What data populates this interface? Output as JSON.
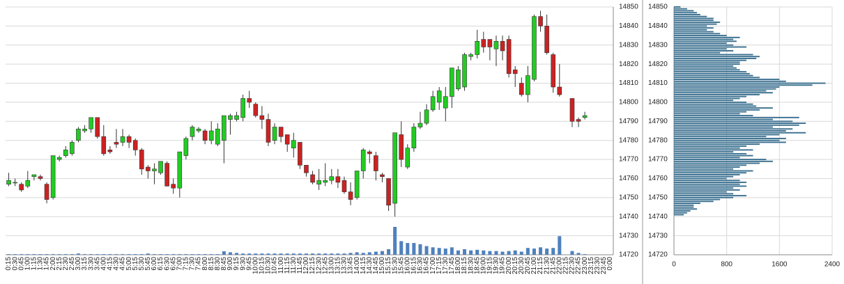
{
  "chart_data": [
    {
      "type": "candlestick",
      "categories": [
        "0:15",
        "0:30",
        "0:45",
        "1:00",
        "1:15",
        "1:30",
        "1:45",
        "2:00",
        "2:15",
        "2:30",
        "2:45",
        "3:00",
        "3:15",
        "3:30",
        "3:45",
        "4:00",
        "4:15",
        "4:30",
        "4:45",
        "5:00",
        "5:15",
        "5:30",
        "5:45",
        "6:00",
        "6:15",
        "6:30",
        "6:45",
        "7:00",
        "7:15",
        "7:30",
        "7:45",
        "8:00",
        "8:15",
        "8:30",
        "8:45",
        "9:00",
        "9:15",
        "9:30",
        "9:45",
        "10:00",
        "10:15",
        "10:30",
        "10:45",
        "11:00",
        "11:15",
        "11:30",
        "11:45",
        "12:00",
        "12:15",
        "12:30",
        "12:45",
        "13:00",
        "13:15",
        "13:30",
        "13:45",
        "14:00",
        "14:15",
        "14:30",
        "14:45",
        "15:00",
        "15:15",
        "15:30",
        "15:45",
        "16:00",
        "16:15",
        "16:30",
        "16:45",
        "17:00",
        "17:15",
        "17:30",
        "17:45",
        "18:00",
        "18:15",
        "18:30",
        "18:45",
        "19:00",
        "19:15",
        "19:30",
        "19:45",
        "20:00",
        "20:15",
        "20:30",
        "20:45",
        "21:00",
        "21:15",
        "21:30",
        "21:45",
        "22:00",
        "22:15",
        "22:30",
        "22:45",
        "23:00",
        "23:15",
        "23:30",
        "23:45",
        "0:00"
      ],
      "open": [
        14757,
        14758,
        14757,
        14756,
        14761,
        14761,
        14757,
        14750,
        14770,
        14772,
        14773,
        14780,
        14785,
        14786,
        14792,
        14782,
        14775,
        14779,
        14779,
        14782,
        14780,
        14775,
        14766,
        14764,
        14763,
        14768,
        14757,
        14755,
        14772,
        14782,
        14785,
        14785,
        14780,
        14778,
        14780,
        14791,
        14791,
        14792,
        14802,
        14799,
        14793,
        14791,
        14780,
        14787,
        14783,
        14776,
        14779,
        14767,
        14762,
        14757,
        14758,
        14759,
        14761,
        14759,
        14753,
        14750,
        14764,
        14774,
        14772,
        14762,
        14760,
        14747,
        14783,
        14766,
        14776,
        14787,
        14789,
        14796,
        14800,
        14797,
        14803,
        14807,
        14808,
        14824,
        14825,
        14833,
        14833,
        14828,
        14832,
        14833,
        14817,
        14810,
        14804,
        14812,
        14845,
        14840,
        14825,
        14808,
        null,
        14802,
        14791,
        14792,
        null,
        null,
        null,
        null
      ],
      "high": [
        14763,
        14760,
        14758,
        14764,
        14762,
        14762,
        14758,
        14772,
        14772,
        14777,
        14780,
        14787,
        14788,
        14792,
        14792,
        14788,
        14777,
        14786,
        14786,
        14783,
        14781,
        14776,
        14767,
        14768,
        14769,
        14769,
        14760,
        14774,
        14782,
        14788,
        14787,
        14786,
        14790,
        14789,
        14793,
        14794,
        14795,
        14804,
        14806,
        14800,
        14798,
        14794,
        14789,
        14787,
        14783,
        14784,
        14779,
        14767,
        14764,
        14765,
        14768,
        14765,
        14765,
        14761,
        14758,
        14764,
        14776,
        14775,
        14774,
        14763,
        14760,
        14784,
        14790,
        14778,
        14789,
        14795,
        14799,
        14806,
        14808,
        14808,
        14818,
        14819,
        14826,
        14826,
        14838,
        14837,
        14833,
        14835,
        14835,
        14835,
        14819,
        14813,
        14819,
        14846,
        14848,
        14846,
        14826,
        14820,
        null,
        14802,
        14792,
        14795,
        null,
        null,
        null,
        null
      ],
      "low": [
        14756,
        14756,
        14753,
        14755,
        14759,
        14759,
        14747,
        14749,
        14769,
        14771,
        14772,
        14779,
        14784,
        14784,
        14781,
        14772,
        14773,
        14776,
        14777,
        14776,
        14772,
        14762,
        14760,
        14757,
        14762,
        14756,
        14752,
        14750,
        14770,
        14780,
        14784,
        14778,
        14778,
        14777,
        14768,
        14783,
        14790,
        14790,
        14797,
        14792,
        14786,
        14777,
        14778,
        14779,
        14774,
        14771,
        14765,
        14761,
        14757,
        14754,
        14756,
        14757,
        14755,
        14752,
        14746,
        14749,
        14760,
        14768,
        14759,
        14758,
        14743,
        14740,
        14766,
        14765,
        14774,
        14786,
        14788,
        14795,
        14796,
        14790,
        14797,
        14806,
        14806,
        14822,
        14823,
        14826,
        14822,
        14819,
        14822,
        14813,
        14808,
        14803,
        14800,
        14811,
        14837,
        14825,
        14805,
        14803,
        null,
        14787,
        14787,
        14791,
        null,
        null,
        null,
        null
      ],
      "close": [
        14759,
        14758,
        14754,
        14759,
        14762,
        14760,
        14749,
        14772,
        14771,
        14775,
        14779,
        14786,
        14786,
        14792,
        14782,
        14773,
        14774,
        14778,
        14782,
        14779,
        14775,
        14765,
        14764,
        14765,
        14769,
        14756,
        14755,
        14774,
        14781,
        14787,
        14786,
        14780,
        14785,
        14786,
        14793,
        14793,
        14793,
        14802,
        14800,
        14793,
        14791,
        14779,
        14787,
        14782,
        14778,
        14780,
        14767,
        14763,
        14758,
        14759,
        14759,
        14761,
        14758,
        14753,
        14749,
        14764,
        14775,
        14773,
        14764,
        14761,
        14746,
        14784,
        14770,
        14776,
        14787,
        14789,
        14796,
        14803,
        14806,
        14803,
        14818,
        14817,
        14825,
        14825,
        14832,
        14829,
        14829,
        14832,
        14827,
        14815,
        14815,
        14804,
        14814,
        14845,
        14840,
        14826,
        14808,
        14804,
        null,
        14790,
        14790,
        14793,
        null,
        null,
        null,
        null
      ],
      "volume": [
        10,
        10,
        10,
        10,
        10,
        10,
        10,
        10,
        10,
        10,
        10,
        20,
        10,
        10,
        10,
        10,
        10,
        10,
        10,
        10,
        10,
        10,
        20,
        10,
        10,
        10,
        10,
        10,
        10,
        10,
        10,
        10,
        10,
        10,
        56,
        40,
        30,
        20,
        20,
        20,
        20,
        20,
        20,
        20,
        20,
        20,
        20,
        20,
        20,
        20,
        20,
        20,
        20,
        20,
        30,
        40,
        30,
        40,
        50,
        60,
        90,
        450,
        220,
        190,
        190,
        170,
        140,
        120,
        110,
        100,
        120,
        70,
        90,
        70,
        80,
        70,
        60,
        60,
        50,
        60,
        70,
        50,
        110,
        100,
        120,
        100,
        110,
        300,
        0,
        60,
        30,
        10,
        0,
        0,
        0,
        0
      ],
      "up_color": "#22cc22",
      "down_color": "#cc2222",
      "volume_color": "#4f81bd",
      "ylim": [
        14720,
        14850
      ],
      "yticks": [
        14720,
        14730,
        14740,
        14750,
        14760,
        14770,
        14780,
        14790,
        14800,
        14810,
        14820,
        14830,
        14840,
        14850
      ],
      "y2lim": [
        0,
        4000
      ],
      "grid": true
    },
    {
      "type": "barh",
      "y": [
        14850,
        14849,
        14848,
        14847,
        14846,
        14845,
        14844,
        14843,
        14842,
        14841,
        14840,
        14839,
        14838,
        14837,
        14836,
        14835,
        14834,
        14833,
        14832,
        14831,
        14830,
        14829,
        14828,
        14827,
        14826,
        14825,
        14824,
        14823,
        14822,
        14821,
        14820,
        14819,
        14818,
        14817,
        14816,
        14815,
        14814,
        14813,
        14812,
        14811,
        14810,
        14809,
        14808,
        14807,
        14806,
        14805,
        14804,
        14803,
        14802,
        14801,
        14800,
        14799,
        14798,
        14797,
        14796,
        14795,
        14794,
        14793,
        14792,
        14791,
        14790,
        14789,
        14788,
        14787,
        14786,
        14785,
        14784,
        14783,
        14782,
        14781,
        14780,
        14779,
        14778,
        14777,
        14776,
        14775,
        14774,
        14773,
        14772,
        14771,
        14770,
        14769,
        14768,
        14767,
        14766,
        14765,
        14764,
        14763,
        14762,
        14761,
        14760,
        14759,
        14758,
        14757,
        14756,
        14755,
        14754,
        14753,
        14752,
        14751,
        14750,
        14749,
        14748,
        14747,
        14746,
        14745,
        14744,
        14743,
        14742,
        14741
      ],
      "values": [
        100,
        200,
        300,
        350,
        400,
        500,
        600,
        600,
        700,
        650,
        500,
        600,
        500,
        600,
        700,
        800,
        1000,
        900,
        950,
        800,
        900,
        1100,
        800,
        900,
        700,
        1200,
        1300,
        1250,
        1100,
        1000,
        1000,
        900,
        950,
        1000,
        1100,
        1150,
        1200,
        1300,
        1600,
        1700,
        2300,
        2100,
        1600,
        1550,
        1400,
        1500,
        1300,
        1100,
        1000,
        900,
        1100,
        1200,
        1250,
        1500,
        1300,
        1100,
        1000,
        1200,
        1900,
        1500,
        1800,
        2000,
        1900,
        1500,
        1800,
        1700,
        2000,
        1600,
        1400,
        1700,
        1600,
        1700,
        1300,
        1100,
        1000,
        1200,
        900,
        1100,
        1200,
        1000,
        1400,
        1500,
        1300,
        1100,
        1000,
        900,
        1200,
        1100,
        1000,
        900,
        800,
        1000,
        1100,
        1000,
        1100,
        900,
        1000,
        800,
        900,
        1100,
        900,
        700,
        600,
        400,
        300,
        300,
        350,
        250,
        200,
        150
      ],
      "color": "#3a6f8f",
      "ylim": [
        14720,
        14850
      ],
      "yticks": [
        14720,
        14730,
        14740,
        14750,
        14760,
        14770,
        14780,
        14790,
        14800,
        14810,
        14820,
        14830,
        14840,
        14850
      ],
      "xlim": [
        0,
        2400
      ],
      "xticks": [
        0,
        800,
        1600,
        2400
      ],
      "grid": true
    }
  ]
}
